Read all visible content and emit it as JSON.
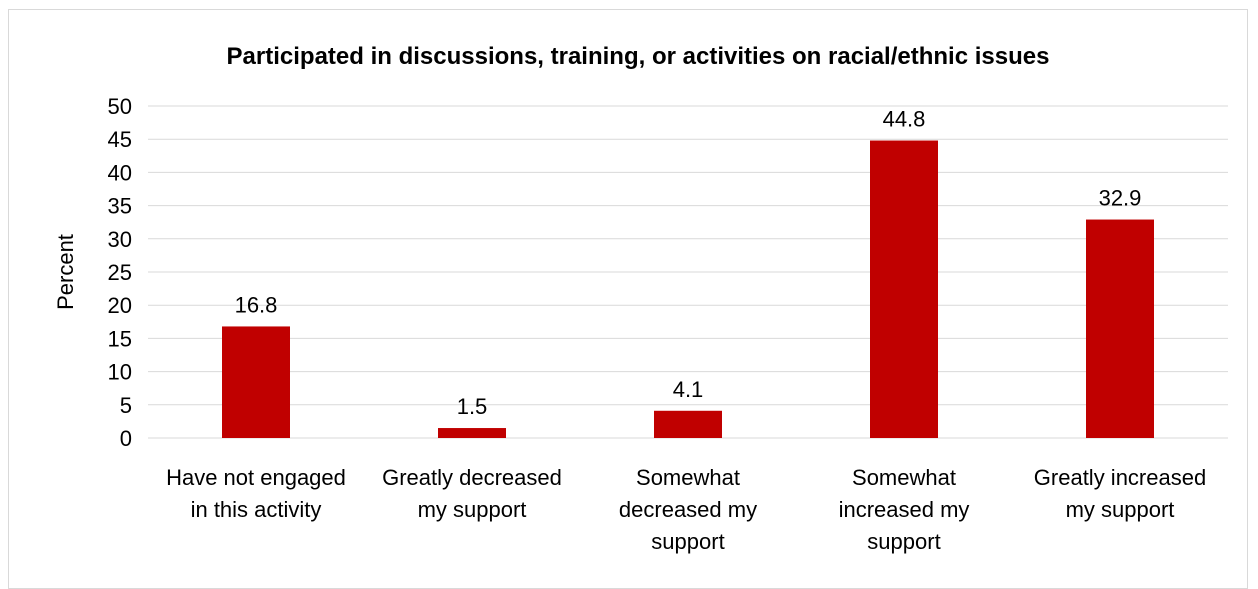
{
  "chart_data": {
    "type": "bar",
    "title": "Participated in discussions, training, or activities on racial/ethnic issues",
    "xlabel": "",
    "ylabel": "Percent",
    "ylim": [
      0,
      50
    ],
    "yticks": [
      0,
      5,
      10,
      15,
      20,
      25,
      30,
      35,
      40,
      45,
      50
    ],
    "categories": [
      [
        "Have not engaged",
        "in this activity"
      ],
      [
        "Greatly decreased",
        "my support"
      ],
      [
        "Somewhat",
        "decreased my",
        "support"
      ],
      [
        "Somewhat",
        "increased my",
        "support"
      ],
      [
        "Greatly increased",
        "my support"
      ]
    ],
    "values": [
      16.8,
      1.5,
      4.1,
      44.8,
      32.9
    ],
    "data_labels": [
      "16.8",
      "1.5",
      "4.1",
      "44.8",
      "32.9"
    ],
    "bar_color": "#c00000",
    "grid": true,
    "legend": "none"
  }
}
